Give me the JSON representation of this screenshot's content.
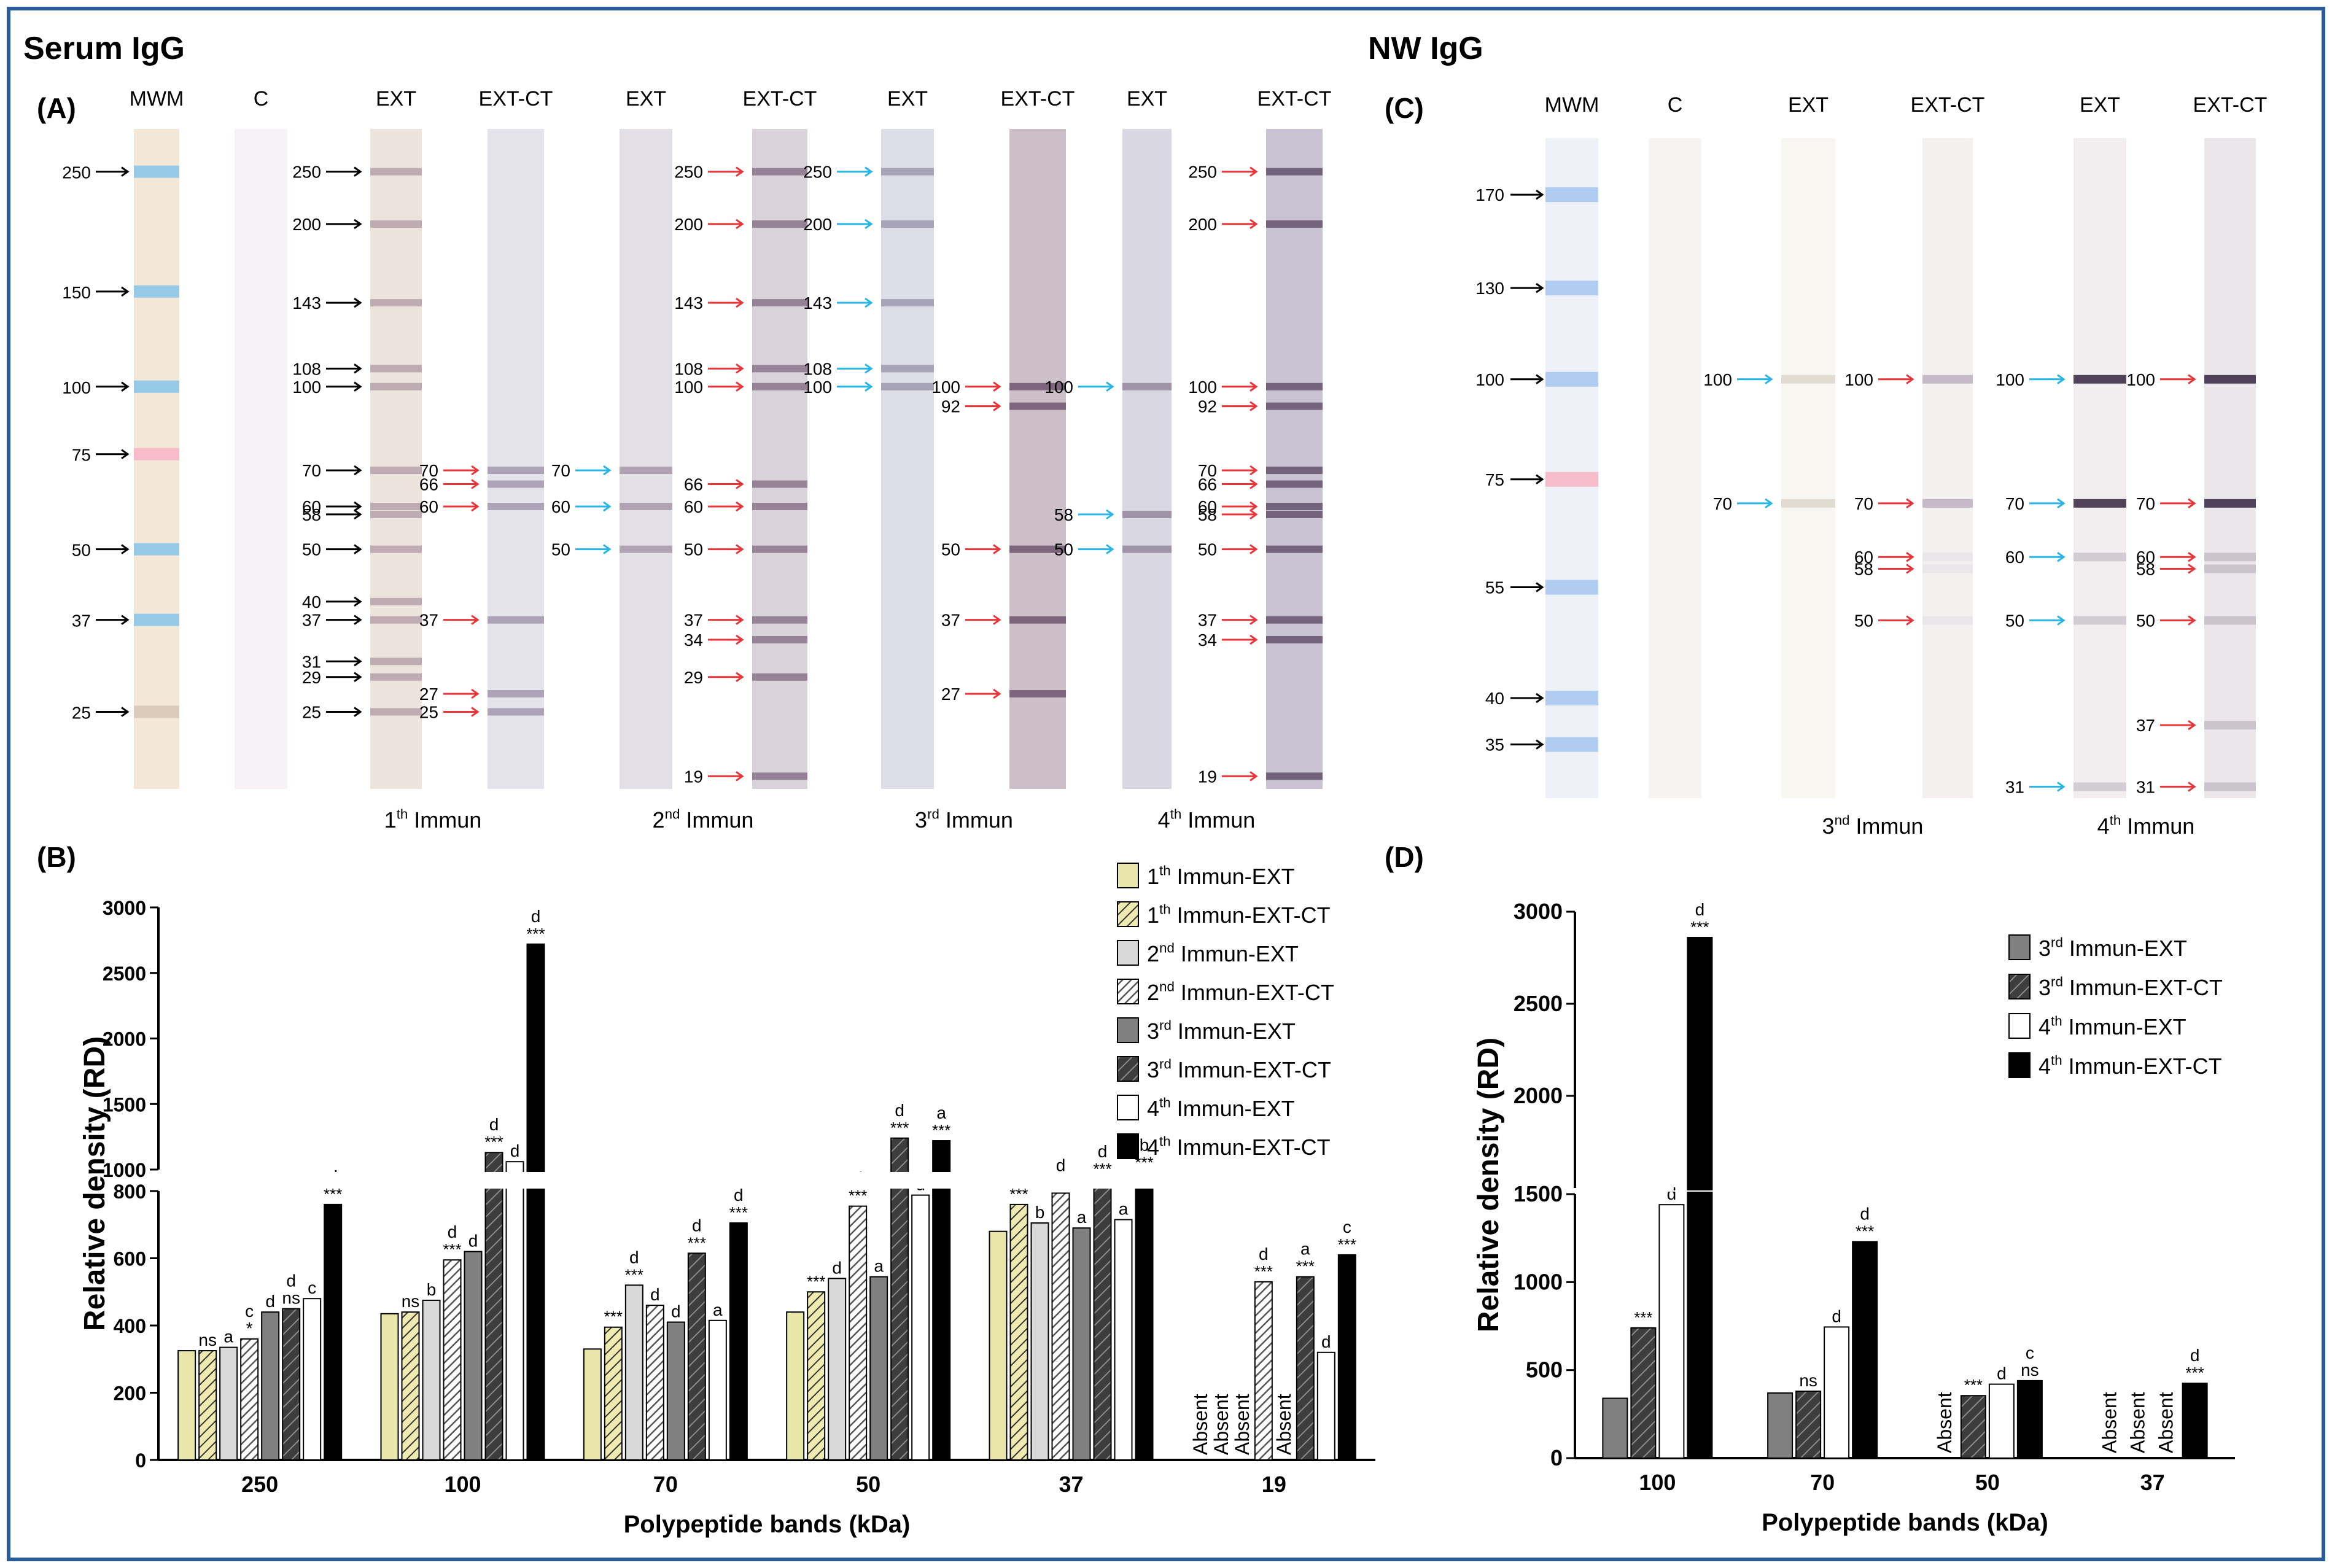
{
  "blot_a": {
    "section_title": "Serum IgG",
    "panel_label": "(A)",
    "lane_headers": [
      "MWM",
      "C",
      "EXT",
      "EXT-CT",
      "EXT",
      "EXT-CT",
      "EXT",
      "EXT-CT",
      "EXT",
      "EXT-CT"
    ],
    "mwm_markers": [
      "250",
      "150",
      "100",
      "75",
      "50",
      "37",
      "25"
    ],
    "immun_labels": [
      {
        "ordinal": "1",
        "sup": "th",
        "rest": " Immun"
      },
      {
        "ordinal": "2",
        "sup": "nd",
        "rest": " Immun"
      },
      {
        "ordinal": "3",
        "sup": "rd",
        "rest": "  Immun"
      },
      {
        "ordinal": "4",
        "sup": "th",
        "rest": "  Immun"
      }
    ],
    "band_groups": [
      {
        "lane": 2,
        "arrow": "black",
        "labels": [
          "250",
          "200",
          "143",
          "108",
          "100",
          "70",
          "60",
          "58",
          "50",
          "40",
          "37",
          "31",
          "29",
          "25"
        ],
        "kda": [
          250,
          200,
          143,
          108,
          100,
          70,
          60,
          58,
          50,
          40,
          37,
          31,
          29,
          25
        ]
      },
      {
        "lane": 3,
        "arrow": "red",
        "labels": [
          "70",
          "66",
          "60",
          "37",
          "27",
          "25"
        ],
        "kda": [
          70,
          66,
          60,
          37,
          27,
          25
        ]
      },
      {
        "lane": 4,
        "arrow": "cyan",
        "labels": [
          "70",
          "60",
          "50"
        ],
        "kda": [
          70,
          60,
          50
        ]
      },
      {
        "lane": 5,
        "arrow": "red",
        "labels": [
          "250",
          "200",
          "143",
          "108",
          "100",
          "66",
          "60",
          "50",
          "37",
          "34",
          "29",
          "19"
        ],
        "kda": [
          250,
          200,
          143,
          108,
          100,
          66,
          60,
          50,
          37,
          34,
          29,
          19
        ]
      },
      {
        "lane": 6,
        "arrow": "cyan",
        "labels": [
          "250",
          "200",
          "143",
          "108",
          "100"
        ],
        "kda": [
          250,
          200,
          143,
          108,
          100
        ]
      },
      {
        "lane": 7,
        "arrow": "red",
        "labels": [
          "100",
          "92",
          "50",
          "37",
          "27"
        ],
        "kda": [
          100,
          92,
          50,
          37,
          27
        ]
      },
      {
        "lane": 8,
        "arrow": "cyan",
        "labels": [
          "100",
          "58",
          "50"
        ],
        "kda": [
          100,
          58,
          50
        ]
      },
      {
        "lane": 9,
        "arrow": "red",
        "labels": [
          "250",
          "200",
          "100",
          "92",
          "70",
          "66",
          "60",
          "58",
          "50",
          "37",
          "34",
          "19"
        ],
        "kda": [
          250,
          200,
          100,
          92,
          70,
          66,
          60,
          58,
          50,
          37,
          34,
          19
        ]
      }
    ]
  },
  "blot_c": {
    "section_title": "NW IgG",
    "panel_label": "(C)",
    "lane_headers": [
      "MWM",
      "C",
      "EXT",
      "EXT-CT",
      "EXT",
      "EXT-CT"
    ],
    "mwm_markers": [
      "170",
      "130",
      "100",
      "75",
      "55",
      "40",
      "35"
    ],
    "immun_labels": [
      {
        "ordinal": "3",
        "sup": "nd",
        "rest": " Immun"
      },
      {
        "ordinal": "4",
        "sup": "th",
        "rest": " Immun"
      }
    ],
    "band_groups": [
      {
        "lane": 2,
        "arrow": "cyan",
        "labels": [
          "100",
          "70"
        ],
        "kda": [
          100,
          70
        ]
      },
      {
        "lane": 3,
        "arrow": "red",
        "labels": [
          "100",
          "70",
          "60",
          "58",
          "50"
        ],
        "kda": [
          100,
          70,
          60,
          58,
          50
        ]
      },
      {
        "lane": 4,
        "arrow": "cyan",
        "labels": [
          "100",
          "70",
          "60",
          "50",
          "31"
        ],
        "kda": [
          100,
          70,
          60,
          50,
          31
        ]
      },
      {
        "lane": 5,
        "arrow": "red",
        "labels": [
          "100",
          "70",
          "60",
          "58",
          "50",
          "37",
          "31"
        ],
        "kda": [
          100,
          70,
          60,
          58,
          50,
          37,
          31
        ]
      }
    ]
  },
  "colors": {
    "ext1": "#e8e6a9",
    "ext3": "#808080",
    "ext4": "#ffffff",
    "ct4": "#000000",
    "arrow_red": "#e8353a",
    "arrow_cyan": "#27b6e6",
    "arrow_black": "#000000",
    "frame": "#2a5b9b"
  },
  "chart_data": [
    {
      "panel": "(B)",
      "type": "bar",
      "ylabel": "Relative density (RD)",
      "xlabel": "Polypeptide bands (kDa)",
      "categories": [
        "250",
        "100",
        "70",
        "50",
        "37",
        "19"
      ],
      "y_broken": true,
      "ylim": [
        0,
        3000
      ],
      "yticks": [
        0,
        200,
        400,
        600,
        800,
        1000,
        1500,
        2000,
        2500,
        3000
      ],
      "legend_position": "top-right",
      "series": [
        {
          "name": "1th Immun-EXT",
          "ord": "1",
          "sup": "th",
          "rest": " Immun-EXT",
          "values": [
            325,
            435,
            330,
            440,
            680,
            null
          ],
          "annot": [
            "",
            "",
            "",
            "",
            "",
            "Absent"
          ]
        },
        {
          "name": "1th Immun-EXT-CT",
          "ord": "1",
          "sup": "th",
          "rest": " Immun-EXT-CT",
          "values": [
            325,
            440,
            395,
            500,
            760,
            null
          ],
          "annot": [
            "ns",
            "ns",
            "***",
            "***",
            "***",
            "Absent"
          ]
        },
        {
          "name": "2nd Immun-EXT",
          "ord": "2",
          "sup": "nd",
          "rest": " Immun-EXT",
          "values": [
            335,
            475,
            520,
            540,
            705,
            null
          ],
          "annot": [
            "a",
            "b",
            "d\n***",
            "d",
            "b",
            "Absent"
          ]
        },
        {
          "name": "2nd Immun-EXT-CT",
          "ord": "2",
          "sup": "nd",
          "rest": " Immun-EXT-CT",
          "values": [
            360,
            595,
            460,
            755,
            820,
            530
          ],
          "annot": [
            "c\n*",
            "d\n***",
            "d",
            "d\n***",
            "d\n***",
            "d\n***"
          ]
        },
        {
          "name": "3rd Immun-EXT",
          "ord": "3",
          "sup": "rd",
          "rest": " Immun-EXT",
          "values": [
            440,
            620,
            410,
            545,
            690,
            null
          ],
          "annot": [
            "d",
            "d",
            "d",
            "a",
            "a",
            "Absent"
          ]
        },
        {
          "name": "3rd Immun-EXT-CT",
          "ord": "3",
          "sup": "rd",
          "rest": " Immun-EXT-CT",
          "values": [
            450,
            1130,
            615,
            1240,
            925,
            545
          ],
          "annot": [
            "d\nns",
            "d\n***",
            "d\n***",
            "d\n***",
            "d\n***",
            "a\n***"
          ]
        },
        {
          "name": "4th Immun-EXT",
          "ord": "4",
          "sup": "th",
          "rest": " Immun-EXT",
          "values": [
            480,
            1060,
            415,
            805,
            715,
            320
          ],
          "annot": [
            "c",
            "d",
            "a",
            "d",
            "a",
            "d"
          ]
        },
        {
          "name": "4th Immun-EXT-CT",
          "ord": "4",
          "sup": "th",
          "rest": " Immun-EXT-CT",
          "values": [
            760,
            2720,
            705,
            1220,
            975,
            610
          ],
          "annot": [
            "d\n***",
            "d\n***",
            "d\n***",
            "a\n***",
            "b\n***",
            "c\n***"
          ]
        }
      ]
    },
    {
      "panel": "(D)",
      "type": "bar",
      "ylabel": "Relative density (RD)",
      "xlabel": "Polypeptide bands (kDa)",
      "categories": [
        "100",
        "70",
        "50",
        "37"
      ],
      "y_broken": true,
      "ylim": [
        0,
        3000
      ],
      "yticks": [
        0,
        500,
        1000,
        1500,
        2000,
        2500,
        3000
      ],
      "legend_position": "top-right",
      "series": [
        {
          "name": "3rd Immun-EXT",
          "ord": "3",
          "sup": "rd",
          "rest": " Immun-EXT",
          "values": [
            340,
            370,
            null,
            null
          ],
          "annot": [
            "",
            "",
            "Absent",
            "Absent"
          ]
        },
        {
          "name": "3rd Immun-EXT-CT",
          "ord": "3",
          "sup": "rd",
          "rest": " Immun-EXT-CT",
          "values": [
            740,
            380,
            355,
            null
          ],
          "annot": [
            "***",
            "ns",
            "***",
            "Absent"
          ]
        },
        {
          "name": "4th Immun-EXT",
          "ord": "4",
          "sup": "th",
          "rest": " Immun-EXT",
          "values": [
            1440,
            745,
            420,
            null
          ],
          "annot": [
            "d",
            "d",
            "d",
            "Absent"
          ]
        },
        {
          "name": "4th Immun-EXT-CT",
          "ord": "4",
          "sup": "th",
          "rest": " Immun-EXT-CT",
          "values": [
            2860,
            1230,
            440,
            425
          ],
          "annot": [
            "d\n***",
            "d\n***",
            "c\nns",
            "d\n***"
          ]
        }
      ]
    }
  ],
  "panel_labels": {
    "b": "(B)",
    "d": "(D)"
  }
}
